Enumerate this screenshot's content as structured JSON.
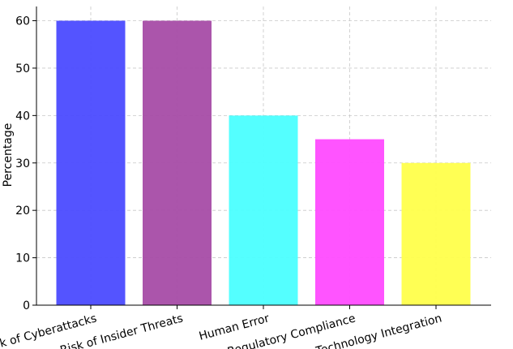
{
  "chart_data": {
    "type": "bar",
    "title": "",
    "xlabel": "",
    "ylabel": "Percentage",
    "ylim": [
      0,
      63
    ],
    "yticks": [
      0,
      10,
      20,
      30,
      40,
      50,
      60
    ],
    "grid": true,
    "categories": [
      "Risk of Cyberattacks",
      "Risk of Insider Threats",
      "Human Error",
      "Regulatory Compliance",
      "Technology Integration"
    ],
    "values": [
      60,
      60,
      40,
      35,
      30
    ],
    "colors": [
      "#4b4bff",
      "#a64ca6",
      "#4bffff",
      "#ff4bff",
      "#ffff4b"
    ],
    "tick_rotation_deg": -15
  }
}
